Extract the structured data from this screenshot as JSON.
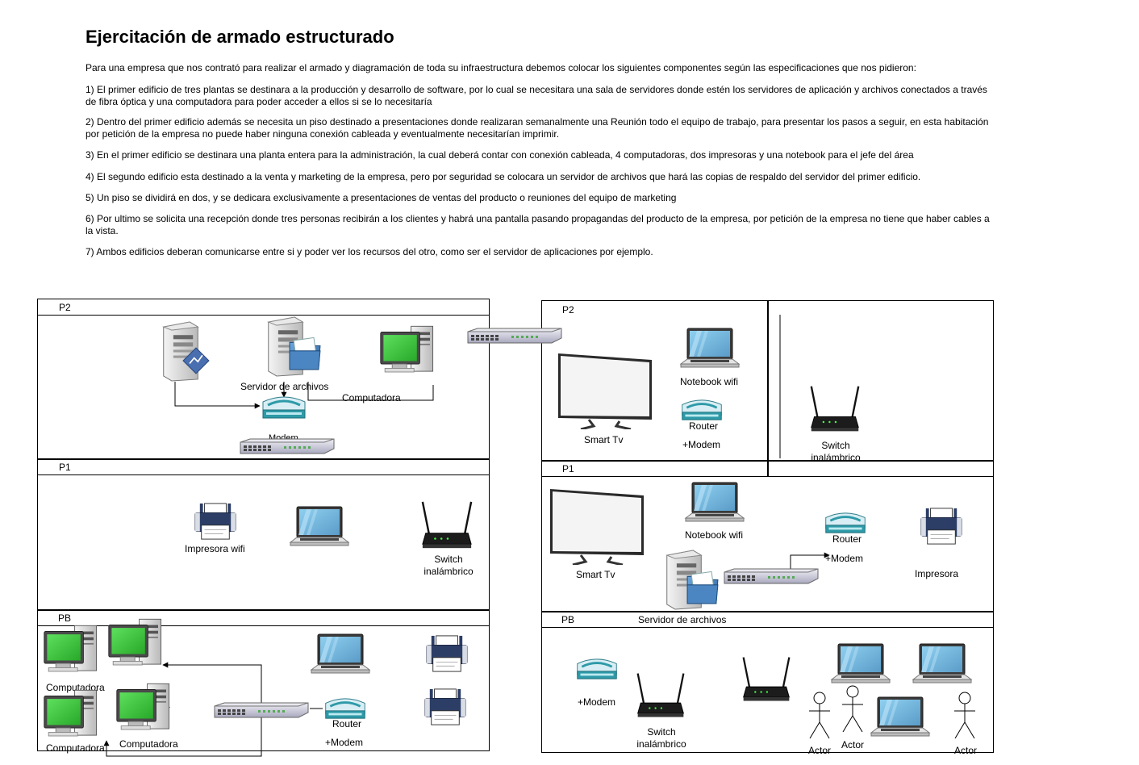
{
  "title": "Ejercitación de armado estructurado",
  "paragraphs": [
    "Para una empresa que  nos contrató para realizar el armado y diagramación de toda su infraestructura debemos colocar los siguientes componentes según las especificaciones que nos pidieron:",
    "1) El primer edificio de tres plantas se destinara a la producción y desarrollo de software, por lo cual se necesitara una sala de servidores donde estén los servidores de aplicación y archivos conectados a través de fibra óptica y una computadora para poder acceder a ellos si se lo necesitaría",
    "2) Dentro del primer edificio además se necesita un piso destinado a presentaciones donde realizaran semanalmente una Reunión todo el equipo de trabajo, para presentar los pasos a seguir, en esta habitación por petición de la empresa no puede haber ninguna conexión cableada y eventualmente necesitarían imprimir.",
    "3) En el primer edificio se destinara una planta entera para la administración, la cual deberá contar con conexión cableada, 4 computadoras, dos impresoras y una notebook para el jefe del área",
    "4) El segundo edificio esta destinado a la venta y marketing de la empresa, pero por seguridad se colocara un servidor de archivos que hará las copias de respaldo del servidor del primer edificio.",
    "5) Un piso se dividirá en dos, y se dedicara exclusivamente a presentaciones de ventas del producto o reuniones del equipo de marketing",
    "6) Por ultimo se solicita una recepción donde tres personas recibirán a los clientes y habrá una pantalla pasando propagandas del producto de la empresa, por petición de la empresa no tiene que haber cables a la vista.",
    "7) Ambos edificios deberan comunicarse entre si y poder ver los recursos del otro, como ser el servidor de aplicaciones por ejemplo."
  ],
  "building1": {
    "floors": {
      "p2": "P2",
      "p1": "P1",
      "pb": "PB"
    },
    "p2": {
      "file_server": "Servidor de archivos",
      "computer": "Computadora",
      "hidden_modem": "Modem"
    },
    "p1": {
      "wifi_printer": "Impresora wifi",
      "wireless_switch": "Switch\ninalámbrico"
    },
    "pb": {
      "computer_1": "Computadora",
      "computer_2": "Computadora",
      "computer_3": "Computadora",
      "computer_3_hidden": "ra",
      "router": "Router",
      "modem": "+Modem"
    }
  },
  "building2": {
    "floors": {
      "p2": "P2",
      "p1": "P1",
      "pb": "PB"
    },
    "p2": {
      "smart_tv": "Smart Tv",
      "notebook": "Notebook wifi",
      "router": "Router",
      "modem": "+Modem",
      "wireless_switch": "Switch\ninalámbrico"
    },
    "p1": {
      "smart_tv": "Smart Tv",
      "notebook": "Notebook wifi",
      "router": "Router",
      "modem": "+Modem",
      "printer": "Impresora",
      "file_server": "Servidor de archivos"
    },
    "pb": {
      "modem": "+Modem",
      "wireless_switch": "Switch\ninalámbrico",
      "actor_1": "Actor",
      "actor_2": "Actor",
      "actor_3": "Actor"
    }
  },
  "colors": {
    "screen_green": "#3cc83c",
    "screen_blue": "#6fb3dc",
    "folder_blue": "#3a78b6",
    "router_teal": "#2e9aa8",
    "printer_navy": "#2c3e66"
  }
}
